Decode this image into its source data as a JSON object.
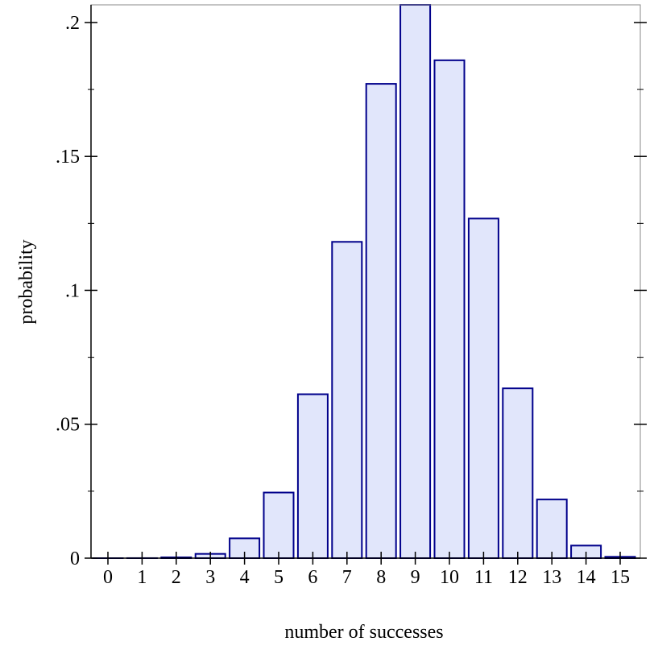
{
  "chart_data": {
    "type": "bar",
    "title": "",
    "xlabel": "number of successes",
    "ylabel": "probability",
    "categories": [
      "0",
      "1",
      "2",
      "3",
      "4",
      "5",
      "6",
      "7",
      "8",
      "9",
      "10",
      "11",
      "12",
      "13",
      "14",
      "15"
    ],
    "values": [
      1e-06,
      2e-05,
      0.0003,
      0.0016,
      0.0074,
      0.0245,
      0.0612,
      0.1181,
      0.1771,
      0.2066,
      0.1859,
      0.1268,
      0.0634,
      0.0219,
      0.0047,
      0.0005
    ],
    "ylim": [
      0,
      0.2066
    ],
    "yticks": [
      0,
      0.05,
      0.1,
      0.15,
      0.2
    ],
    "ytick_labels": [
      "0",
      ".05",
      ".1",
      ".15",
      ".2"
    ],
    "grid": false,
    "colors": {
      "bar_fill": "#e1e6fb",
      "bar_stroke": "#00008b",
      "frame": "#000000"
    }
  }
}
